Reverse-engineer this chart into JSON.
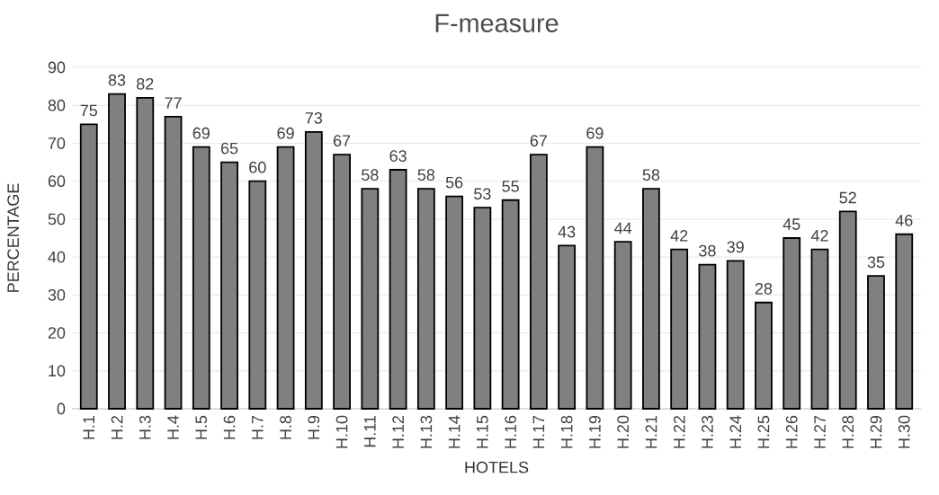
{
  "chart_data": {
    "type": "bar",
    "title": "F-measure",
    "xlabel": "HOTELS",
    "ylabel": "PERCENTAGE",
    "categories": [
      "H.1",
      "H.2",
      "H.3",
      "H.4",
      "H.5",
      "H.6",
      "H.7",
      "H.8",
      "H.9",
      "H.10",
      "H.11",
      "H.12",
      "H.13",
      "H.14",
      "H.15",
      "H.16",
      "H.17",
      "H.18",
      "H.19",
      "H.20",
      "H.21",
      "H.22",
      "H.23",
      "H.24",
      "H.25",
      "H.26",
      "H.27",
      "H.28",
      "H.29",
      "H.30"
    ],
    "values": [
      75,
      83,
      82,
      77,
      69,
      65,
      60,
      69,
      73,
      67,
      58,
      63,
      58,
      56,
      53,
      55,
      67,
      43,
      69,
      44,
      58,
      42,
      38,
      39,
      28,
      45,
      42,
      52,
      35,
      46
    ],
    "color": "#808080",
    "ylim": [
      0,
      90
    ],
    "yticks": [
      0,
      10,
      20,
      30,
      40,
      50,
      60,
      70,
      80,
      90
    ],
    "grid": "y",
    "data_labels": true
  }
}
